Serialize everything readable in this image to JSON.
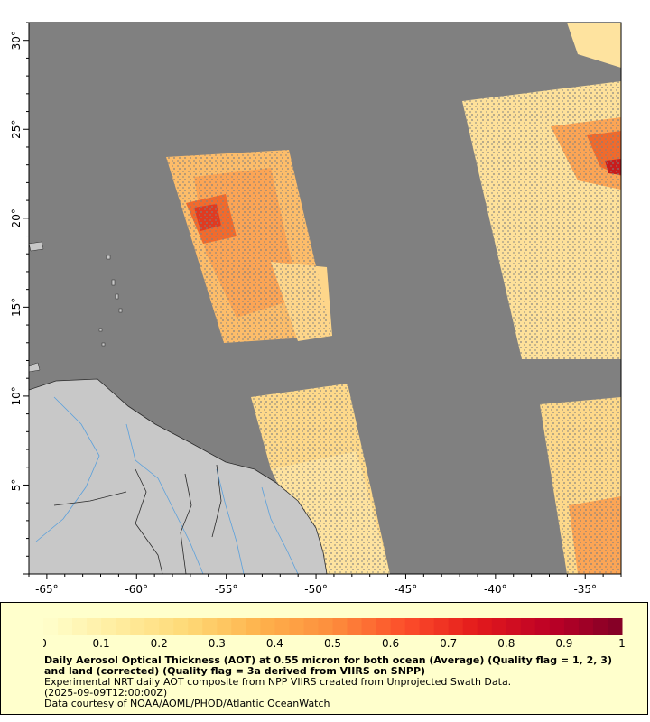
{
  "map": {
    "lon_range": [
      -66,
      -33
    ],
    "lat_range": [
      0,
      31
    ],
    "x_ticks": [
      {
        "value": -65,
        "label": "-65°"
      },
      {
        "value": -60,
        "label": "-60°"
      },
      {
        "value": -55,
        "label": "-55°"
      },
      {
        "value": -50,
        "label": "-50°"
      },
      {
        "value": -45,
        "label": "-45°"
      },
      {
        "value": -40,
        "label": "-40°"
      },
      {
        "value": -35,
        "label": "-35°"
      }
    ],
    "y_ticks": [
      {
        "value": 5,
        "label": "5°"
      },
      {
        "value": 10,
        "label": "10°"
      },
      {
        "value": 15,
        "label": "15°"
      },
      {
        "value": 20,
        "label": "20°"
      },
      {
        "value": 25,
        "label": "25°"
      },
      {
        "value": 30,
        "label": "30°"
      }
    ],
    "colors": {
      "no_data": "#808080",
      "land": "#c8c8c8",
      "river": "#5aa0dc",
      "border": "#2a2a2a"
    }
  },
  "colorbar": {
    "min": 0,
    "max": 1,
    "tick_labels": [
      "0",
      "0.1",
      "0.2",
      "0.3",
      "0.4",
      "0.5",
      "0.6",
      "0.7",
      "0.8",
      "0.9",
      "1"
    ],
    "colors": [
      "#ffffcc",
      "#ffeda0",
      "#fed976",
      "#feb24c",
      "#fd8d3c",
      "#fc4e2a",
      "#e31a1c",
      "#bd0026",
      "#800026"
    ]
  },
  "legend": {
    "title": "Daily Aerosol Optical Thickness (AOT) at 0.55 micron for both ocean (Average) (Quality flag = 1, 2, 3) and land (corrected) (Quality flag = 3a derived from VIIRS on SNPP)",
    "description": "Experimental NRT daily AOT composite from NPP VIIRS created from Unprojected Swath Data.",
    "date": "(2025-09-09T12:00:00Z)",
    "credit": "Data courtesy of NOAA/AOML/PHOD/Atlantic OceanWatch"
  }
}
